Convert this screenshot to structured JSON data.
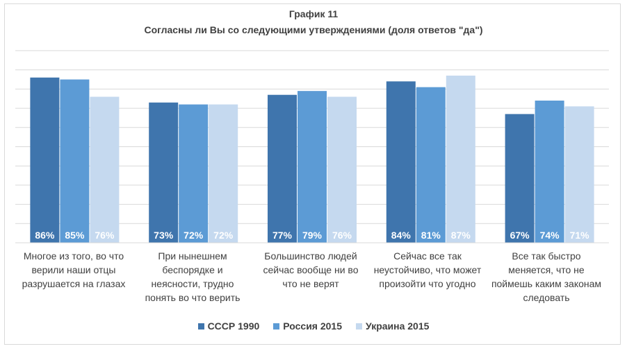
{
  "chart_data": {
    "type": "bar",
    "title": "График 11",
    "subtitle": "Согласны ли Вы со следующими утверждениями (доля ответов \"да\")",
    "categories": [
      "Многое из того, во что верили наши отцы разрушается на глазах",
      "При нынешнем беспорядке и неясности, трудно понять во что верить",
      "Большинство людей сейчас вообще ни во что не верят",
      "Сейчас все так неустойчиво, что может произойти что угодно",
      "Все так быстро меняется, что не поймешь каким законам следовать"
    ],
    "series": [
      {
        "name": "СССР 1990",
        "values": [
          86,
          73,
          77,
          84,
          67
        ],
        "labels": [
          "86%",
          "73%",
          "77%",
          "84%",
          "67%"
        ],
        "color": "#3f75ad"
      },
      {
        "name": "Россия 2015",
        "values": [
          85,
          72,
          79,
          81,
          74
        ],
        "labels": [
          "85%",
          "72%",
          "79%",
          "81%",
          "74%"
        ],
        "color": "#5c9bd5"
      },
      {
        "name": "Украина 2015",
        "values": [
          76,
          72,
          76,
          87,
          71
        ],
        "labels": [
          "76%",
          "72%",
          "76%",
          "87%",
          "71%"
        ],
        "color": "#c5d9ef"
      }
    ],
    "ylim": [
      0,
      100
    ],
    "grid": true,
    "legend": "bottom",
    "xlabel": "",
    "ylabel": ""
  }
}
